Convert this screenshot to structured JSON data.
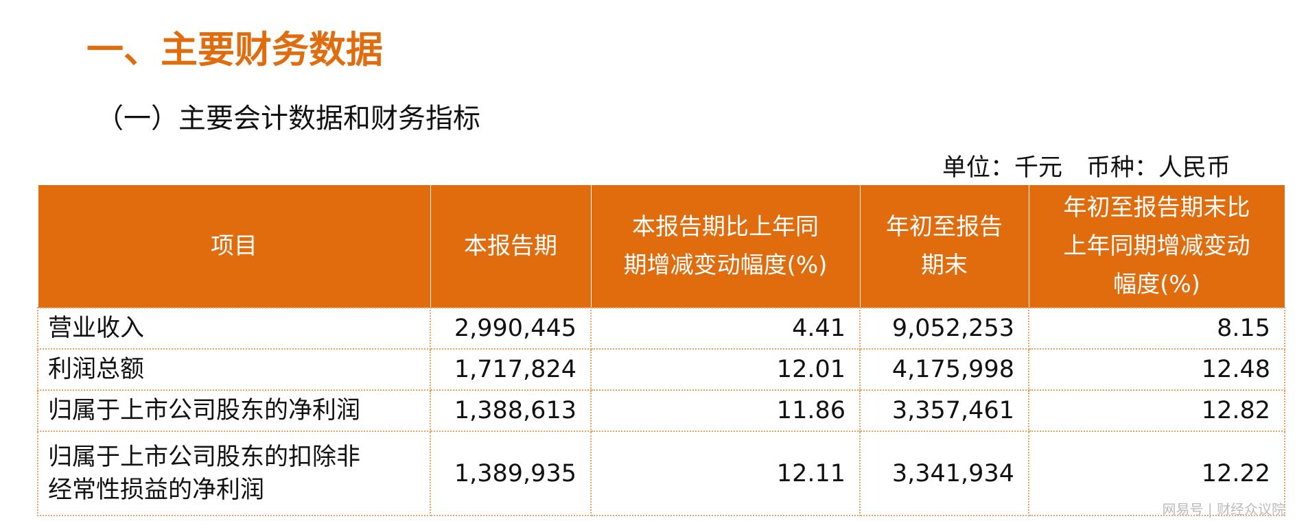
{
  "header": {
    "title": "一、主要财务数据",
    "subtitle": "（一）主要会计数据和财务指标",
    "unit": "单位：千元　币种：人民币"
  },
  "table": {
    "columns": [
      [
        "项目"
      ],
      [
        "本报告期"
      ],
      [
        "本报告期比上年同",
        "期增减变动幅度(%)"
      ],
      [
        "年初至报告",
        "期末"
      ],
      [
        "年初至报告期末比",
        "上年同期增减变动",
        "幅度(%)"
      ]
    ],
    "rows": [
      [
        [
          "营业收入"
        ],
        "2,990,445",
        "4.41",
        "9,052,253",
        "8.15"
      ],
      [
        [
          "利润总额"
        ],
        "1,717,824",
        "12.01",
        "4,175,998",
        "12.48"
      ],
      [
        [
          "归属于上市公司股东的净利润"
        ],
        "1,388,613",
        "11.86",
        "3,357,461",
        "12.82"
      ],
      [
        [
          "归属于上市公司股东的扣除非",
          "经常性损益的净利润"
        ],
        "1,389,935",
        "12.11",
        "3,341,934",
        "12.22"
      ]
    ]
  },
  "watermark": "网易号 | 财经众议院"
}
